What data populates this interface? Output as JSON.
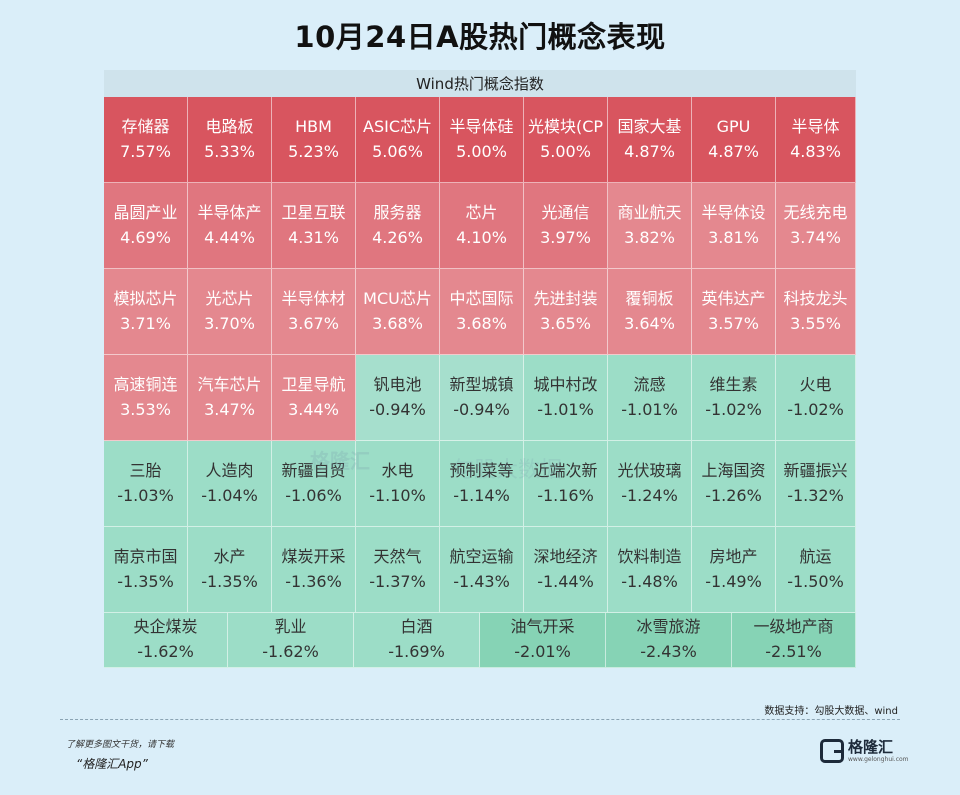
{
  "title": "10月24日A股热门概念表现",
  "chart_data": {
    "type": "heatmap",
    "header": "Wind热门概念指数",
    "colors": {
      "up_strong": "#d8555f",
      "up": "#e0767f",
      "up_soft": "#e4888f",
      "down_soft": "#a6dfcd",
      "down": "#9cddc7",
      "down_strong": "#86d3b5"
    },
    "cells": [
      {
        "name": "存储器",
        "label": "7.57%",
        "value": 7.57
      },
      {
        "name": "电路板",
        "label": "5.33%",
        "value": 5.33
      },
      {
        "name": "HBM",
        "label": "5.23%",
        "value": 5.23
      },
      {
        "name": "ASIC芯片",
        "label": "5.06%",
        "value": 5.06
      },
      {
        "name": "半导体硅",
        "label": "5.00%",
        "value": 5.0
      },
      {
        "name": "光模块(CP",
        "label": "5.00%",
        "value": 5.0
      },
      {
        "name": "国家大基",
        "label": "4.87%",
        "value": 4.87
      },
      {
        "name": "GPU",
        "label": "4.87%",
        "value": 4.87
      },
      {
        "name": "半导体",
        "label": "4.83%",
        "value": 4.83
      },
      {
        "name": "晶圆产业",
        "label": "4.69%",
        "value": 4.69
      },
      {
        "name": "半导体产",
        "label": "4.44%",
        "value": 4.44
      },
      {
        "name": "卫星互联",
        "label": "4.31%",
        "value": 4.31
      },
      {
        "name": "服务器",
        "label": "4.26%",
        "value": 4.26
      },
      {
        "name": "芯片",
        "label": "4.10%",
        "value": 4.1
      },
      {
        "name": "光通信",
        "label": "3.97%",
        "value": 3.97
      },
      {
        "name": "商业航天",
        "label": "3.82%",
        "value": 3.82
      },
      {
        "name": "半导体设",
        "label": "3.81%",
        "value": 3.81
      },
      {
        "name": "无线充电",
        "label": "3.74%",
        "value": 3.74
      },
      {
        "name": "模拟芯片",
        "label": "3.71%",
        "value": 3.71
      },
      {
        "name": "光芯片",
        "label": "3.70%",
        "value": 3.7
      },
      {
        "name": "半导体材",
        "label": "3.67%",
        "value": 3.67
      },
      {
        "name": "MCU芯片",
        "label": "3.68%",
        "value": 3.68
      },
      {
        "name": "中芯国际",
        "label": "3.68%",
        "value": 3.68
      },
      {
        "name": "先进封装",
        "label": "3.65%",
        "value": 3.65
      },
      {
        "name": "覆铜板",
        "label": "3.64%",
        "value": 3.64
      },
      {
        "name": "英伟达产",
        "label": "3.57%",
        "value": 3.57
      },
      {
        "name": "科技龙头",
        "label": "3.55%",
        "value": 3.55
      },
      {
        "name": "高速铜连",
        "label": "3.53%",
        "value": 3.53
      },
      {
        "name": "汽车芯片",
        "label": "3.47%",
        "value": 3.47
      },
      {
        "name": "卫星导航",
        "label": "3.44%",
        "value": 3.44
      },
      {
        "name": "钒电池",
        "label": "-0.94%",
        "value": -0.94
      },
      {
        "name": "新型城镇",
        "label": "-0.94%",
        "value": -0.94
      },
      {
        "name": "城中村改",
        "label": "-1.01%",
        "value": -1.01
      },
      {
        "name": "流感",
        "label": "-1.01%",
        "value": -1.01
      },
      {
        "name": "维生素",
        "label": "-1.02%",
        "value": -1.02
      },
      {
        "name": "火电",
        "label": "-1.02%",
        "value": -1.02
      },
      {
        "name": "三胎",
        "label": "-1.03%",
        "value": -1.03
      },
      {
        "name": "人造肉",
        "label": "-1.04%",
        "value": -1.04
      },
      {
        "name": "新疆自贸",
        "label": "-1.06%",
        "value": -1.06
      },
      {
        "name": "水电",
        "label": "-1.10%",
        "value": -1.1
      },
      {
        "name": "预制菜等",
        "label": "-1.14%",
        "value": -1.14
      },
      {
        "name": "近端次新",
        "label": "-1.16%",
        "value": -1.16
      },
      {
        "name": "光伏玻璃",
        "label": "-1.24%",
        "value": -1.24
      },
      {
        "name": "上海国资",
        "label": "-1.26%",
        "value": -1.26
      },
      {
        "name": "新疆振兴",
        "label": "-1.32%",
        "value": -1.32
      },
      {
        "name": "南京市国",
        "label": "-1.35%",
        "value": -1.35
      },
      {
        "name": "水产",
        "label": "-1.35%",
        "value": -1.35
      },
      {
        "name": "煤炭开采",
        "label": "-1.36%",
        "value": -1.36
      },
      {
        "name": "天然气",
        "label": "-1.37%",
        "value": -1.37
      },
      {
        "name": "航空运输",
        "label": "-1.43%",
        "value": -1.43
      },
      {
        "name": "深地经济",
        "label": "-1.44%",
        "value": -1.44
      },
      {
        "name": "饮料制造",
        "label": "-1.48%",
        "value": -1.48
      },
      {
        "name": "房地产",
        "label": "-1.49%",
        "value": -1.49
      },
      {
        "name": "航运",
        "label": "-1.50%",
        "value": -1.5
      },
      {
        "name": "央企煤炭",
        "label": "-1.62%",
        "value": -1.62
      },
      {
        "name": "乳业",
        "label": "-1.62%",
        "value": -1.62
      },
      {
        "name": "白酒",
        "label": "-1.69%",
        "value": -1.69
      },
      {
        "name": "油气开采",
        "label": "-2.01%",
        "value": -2.01
      },
      {
        "name": "冰雪旅游",
        "label": "-2.43%",
        "value": -2.43
      },
      {
        "name": "一级地产商",
        "label": "-2.51%",
        "value": -2.51
      }
    ]
  },
  "watermark": {
    "brand": "格隆汇",
    "text": "勾股大数据"
  },
  "source": "数据支持：勾股大数据、wind",
  "footer": {
    "note": "了解更多图文干货，请下载",
    "app": "“格隆汇App”",
    "logo_name": "格隆汇",
    "logo_url": "www.gelonghui.com"
  }
}
